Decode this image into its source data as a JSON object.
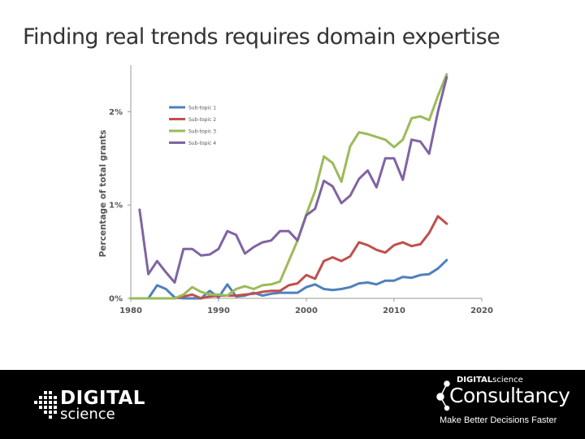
{
  "slide": {
    "title": "Finding real trends requires domain expertise"
  },
  "footer": {
    "left_logo": {
      "line1": "DIGITAL",
      "line2": "science"
    },
    "right_logo": {
      "small_text_bold": "DIGITAL",
      "small_text_light": "science",
      "word": "Consultancy",
      "tagline": "Make Better Decisions Faster"
    }
  },
  "chart_data": {
    "type": "line",
    "title": "",
    "xlabel": "",
    "ylabel": "Percentage of total grants",
    "xlim": [
      1980,
      2020
    ],
    "ylim": [
      0,
      2.5
    ],
    "xticks": [
      1980,
      1990,
      2000,
      2010,
      2020
    ],
    "yticks": [
      0,
      1,
      2
    ],
    "ytick_labels": [
      "0%",
      "1%",
      "2%"
    ],
    "grid": false,
    "legend_position": "top-left",
    "x": [
      1980,
      1981,
      1982,
      1983,
      1984,
      1985,
      1986,
      1987,
      1988,
      1989,
      1990,
      1991,
      1992,
      1993,
      1994,
      1995,
      1996,
      1997,
      1998,
      1999,
      2000,
      2001,
      2002,
      2003,
      2004,
      2005,
      2006,
      2007,
      2008,
      2009,
      2010,
      2011,
      2012,
      2013,
      2014,
      2015,
      2016
    ],
    "series": [
      {
        "name": "Sub-topic 1",
        "color": "#4f81bd",
        "values": [
          0,
          0,
          0,
          0.14,
          0.1,
          0.01,
          0,
          0,
          0,
          0.08,
          0.01,
          0.15,
          0.02,
          0.03,
          0.06,
          0.03,
          0.05,
          0.06,
          0.06,
          0.06,
          0.12,
          0.15,
          0.1,
          0.09,
          0.1,
          0.12,
          0.16,
          0.17,
          0.15,
          0.19,
          0.19,
          0.23,
          0.22,
          0.25,
          0.26,
          0.32,
          0.41
        ]
      },
      {
        "name": "Sub-topic 2",
        "color": "#c0504d",
        "values": [
          0,
          0,
          0,
          0,
          0,
          0,
          0.02,
          0.04,
          0,
          0.02,
          0.03,
          0.03,
          0.03,
          0.04,
          0.05,
          0.07,
          0.08,
          0.08,
          0.14,
          0.16,
          0.25,
          0.21,
          0.4,
          0.44,
          0.4,
          0.45,
          0.6,
          0.57,
          0.52,
          0.49,
          0.57,
          0.6,
          0.56,
          0.58,
          0.7,
          0.88,
          0.8
        ]
      },
      {
        "name": "Sub-topic 3",
        "color": "#9bbb59",
        "values": [
          0,
          0,
          0,
          0,
          0,
          0,
          0.04,
          0.12,
          0.07,
          0.04,
          0.04,
          0.03,
          0.1,
          0.13,
          0.1,
          0.14,
          0.15,
          0.18,
          0.4,
          0.62,
          0.9,
          1.15,
          1.52,
          1.45,
          1.25,
          1.63,
          1.78,
          1.76,
          1.73,
          1.7,
          1.62,
          1.7,
          1.93,
          1.95,
          1.91,
          2.17,
          2.4
        ]
      },
      {
        "name": "Sub-topic 4",
        "color": "#8064a2",
        "values": [
          null,
          0.95,
          0.26,
          0.4,
          0.28,
          0.17,
          0.53,
          0.53,
          0.46,
          0.47,
          0.53,
          0.72,
          0.68,
          0.48,
          0.55,
          0.6,
          0.62,
          0.72,
          0.72,
          0.62,
          0.89,
          0.96,
          1.26,
          1.2,
          1.02,
          1.1,
          1.28,
          1.37,
          1.19,
          1.5,
          1.5,
          1.27,
          1.7,
          1.68,
          1.55,
          2.0,
          2.37
        ]
      }
    ]
  }
}
